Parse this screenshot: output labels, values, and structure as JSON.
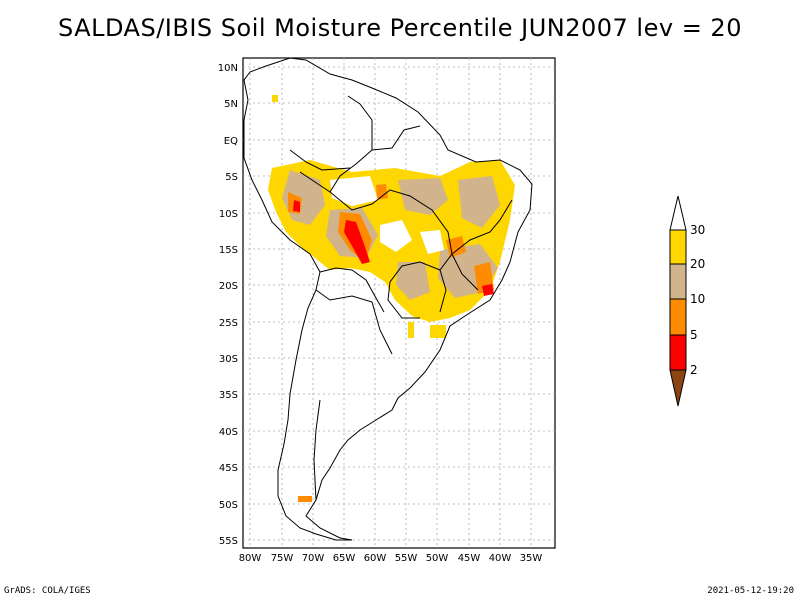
{
  "title": "SALDAS/IBIS Soil Moisture Percentile JUN2007 lev = 20",
  "footer": {
    "left": "GrADS: COLA/IGES",
    "right": "2021-05-12-19:20"
  },
  "map": {
    "lon_range": [
      -80,
      -32
    ],
    "lat_range": [
      -56,
      12
    ],
    "lon_labels": [
      "80W",
      "75W",
      "70W",
      "65W",
      "60W",
      "55W",
      "50W",
      "45W",
      "40W",
      "35W"
    ],
    "lat_labels": [
      "10N",
      "5N",
      "EQ",
      "5S",
      "10S",
      "15S",
      "20S",
      "25S",
      "30S",
      "35S",
      "40S",
      "45S",
      "50S",
      "55S"
    ]
  },
  "legend": {
    "levels": [
      "30",
      "20",
      "10",
      "5",
      "2"
    ],
    "colors": {
      "gt30": "#ffffff",
      "20_30": "#ffd700",
      "10_20": "#d2b48c",
      "5_10": "#ff8c00",
      "2_5": "#ff0000",
      "lt2": "#8b4513"
    }
  }
}
